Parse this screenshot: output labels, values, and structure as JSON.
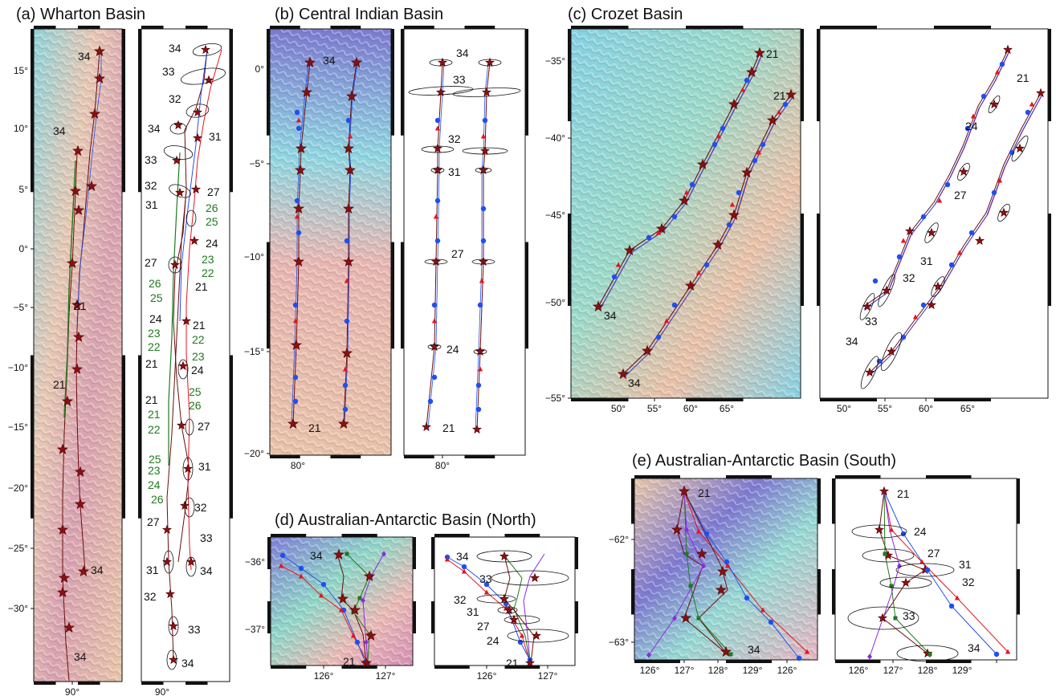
{
  "panels": [
    {
      "key": "a",
      "title": "(a) Wharton Basin",
      "yticks": [
        "15°",
        "10°",
        "5°",
        "0°",
        "−5°",
        "−10°",
        "−15°",
        "−20°",
        "−25°",
        "−30°"
      ],
      "xticks": [
        "90°",
        "90°"
      ],
      "map_labels": [
        "34",
        "34",
        "21",
        "21",
        "34",
        "34"
      ],
      "iso_labels": [
        "34",
        "33",
        "32",
        "34",
        "31",
        "33",
        "32",
        "27",
        "31",
        "24",
        "27",
        "21",
        "24",
        "21",
        "21",
        "24",
        "21",
        "27",
        "31",
        "32",
        "27",
        "33",
        "31",
        "34",
        "32",
        "33",
        "34"
      ],
      "green_labels": [
        "26",
        "25",
        "23",
        "22",
        "26",
        "25",
        "23",
        "22",
        "23",
        "22",
        "25",
        "26",
        "21",
        "22",
        "23",
        "24",
        "25",
        "26"
      ]
    },
    {
      "key": "b",
      "title": "(b) Central Indian Basin",
      "yticks": [
        "0°",
        "−5°",
        "−10°",
        "−15°",
        "−20°"
      ],
      "xticks": [
        "80°",
        "80°"
      ],
      "map_labels": [
        "34",
        "21"
      ],
      "iso_labels": [
        "34",
        "33",
        "32",
        "31",
        "27",
        "24",
        "21"
      ]
    },
    {
      "key": "c",
      "title": "(c) Crozet Basin",
      "yticks": [
        "−35°",
        "−40°",
        "−45°",
        "−50°",
        "−55°"
      ],
      "xticks": [
        "50°",
        "55°",
        "60°",
        "65°",
        "50°",
        "55°",
        "60°",
        "65°"
      ],
      "map_labels": [
        "21",
        "21",
        "34",
        "34"
      ],
      "iso_labels": [
        "21",
        "24",
        "27",
        "31",
        "32",
        "33",
        "34"
      ]
    },
    {
      "key": "d",
      "title": "(d) Australian-Antarctic Basin (North)",
      "yticks": [
        "−36°",
        "−37°"
      ],
      "xticks": [
        "126°",
        "127°",
        "126°",
        "127°"
      ],
      "map_labels": [
        "34",
        "21"
      ],
      "iso_labels": [
        "34",
        "33",
        "32",
        "31",
        "27",
        "24",
        "21"
      ]
    },
    {
      "key": "e",
      "title": "(e) Australian-Antarctic Basin (South)",
      "yticks": [
        "−62°",
        "−63°"
      ],
      "xticks": [
        "126°",
        "127°",
        "128°",
        "129°",
        "126°",
        "127°",
        "128°",
        "129°"
      ],
      "map_labels": [
        "21",
        "34"
      ],
      "iso_labels": [
        "21",
        "24",
        "27",
        "31",
        "32",
        "33",
        "34"
      ]
    }
  ],
  "colors": {
    "red": "#e5141e",
    "blue": "#1f4ff0",
    "green": "#1e7a1e",
    "purple": "#8a2be2",
    "star": "#8b1010",
    "line": "#6b0d0d"
  }
}
